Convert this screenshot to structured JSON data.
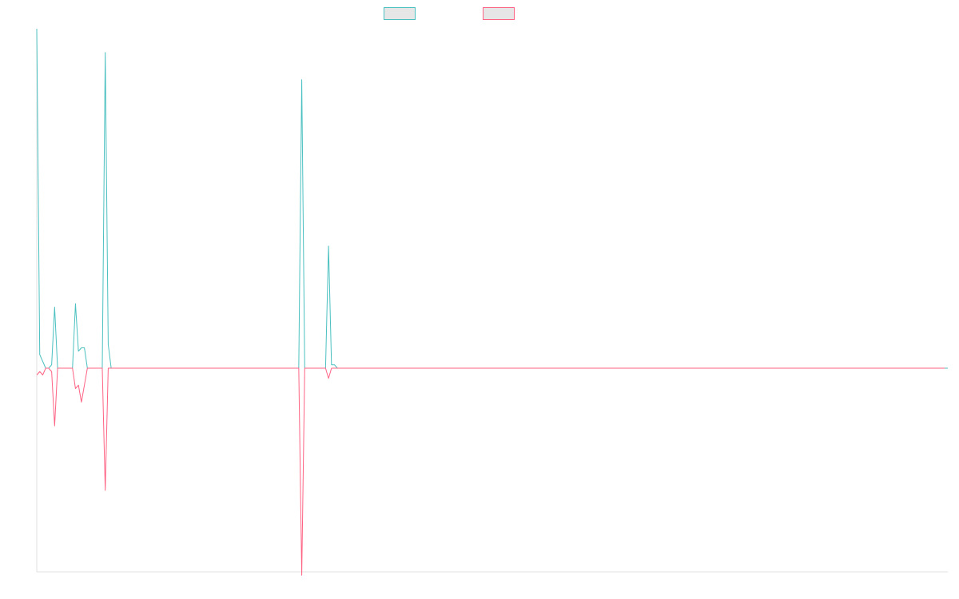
{
  "chart_data": {
    "type": "line",
    "title": "",
    "xlabel": "",
    "ylabel": "",
    "ylim": [
      -0.6,
      1.0
    ],
    "grid": false,
    "legend": "top",
    "series": [
      {
        "name": "",
        "color": "#4bc0c0",
        "values": [
          1.0,
          0.04,
          0.02,
          0,
          0,
          0.01,
          0.18,
          0,
          0,
          0,
          0,
          0,
          0,
          0.19,
          0.05,
          0.06,
          0.06,
          0,
          0,
          0,
          0,
          0,
          0,
          0.93,
          0.07,
          0,
          0,
          0,
          0,
          0,
          0,
          0,
          0,
          0,
          0,
          0,
          0,
          0,
          0,
          0,
          0,
          0,
          0,
          0,
          0,
          0,
          0,
          0,
          0,
          0,
          0,
          0,
          0,
          0,
          0,
          0,
          0,
          0,
          0,
          0,
          0,
          0,
          0,
          0,
          0,
          0,
          0,
          0,
          0,
          0,
          0,
          0,
          0,
          0,
          0,
          0,
          0,
          0,
          0,
          0,
          0,
          0,
          0,
          0,
          0,
          0,
          0,
          0,
          0,
          0.85,
          0.0,
          0,
          0,
          0,
          0,
          0,
          0,
          0,
          0.36,
          0.01,
          0.01,
          0,
          0,
          0,
          0,
          0,
          0,
          0,
          0,
          0,
          0,
          0,
          0,
          0,
          0,
          0,
          0,
          0,
          0,
          0,
          0,
          0,
          0,
          0,
          0,
          0,
          0,
          0,
          0,
          0,
          0,
          0,
          0,
          0,
          0,
          0,
          0,
          0,
          0,
          0,
          0,
          0,
          0,
          0,
          0,
          0,
          0,
          0,
          0,
          0,
          0,
          0,
          0,
          0,
          0,
          0,
          0,
          0,
          0,
          0,
          0,
          0,
          0,
          0,
          0,
          0,
          0,
          0,
          0,
          0,
          0,
          0,
          0,
          0,
          0,
          0,
          0,
          0,
          0,
          0,
          0,
          0,
          0,
          0,
          0,
          0,
          0,
          0,
          0,
          0,
          0,
          0,
          0,
          0,
          0,
          0,
          0,
          0,
          0,
          0,
          0,
          0,
          0,
          0,
          0,
          0,
          0,
          0,
          0,
          0,
          0,
          0,
          0,
          0,
          0,
          0,
          0,
          0,
          0,
          0,
          0,
          0,
          0,
          0,
          0,
          0,
          0,
          0,
          0,
          0,
          0,
          0,
          0,
          0,
          0,
          0,
          0,
          0,
          0,
          0,
          0,
          0,
          0,
          0,
          0,
          0,
          0,
          0,
          0,
          0,
          0,
          0,
          0,
          0,
          0,
          0,
          0,
          0,
          0,
          0,
          0,
          0,
          0,
          0,
          0,
          0,
          0,
          0,
          0,
          0,
          0,
          0,
          0,
          0,
          0,
          0,
          0,
          0,
          0,
          0,
          0,
          0,
          0,
          0,
          0,
          0,
          0,
          0,
          0,
          0,
          0,
          0,
          0,
          0,
          0,
          0,
          0,
          0,
          0,
          0,
          0,
          0,
          0,
          0,
          0,
          0,
          0
        ]
      },
      {
        "name": "",
        "color": "#ff6384",
        "values": [
          -0.02,
          -0.01,
          -0.02,
          0,
          0,
          -0.01,
          -0.17,
          0,
          0,
          0,
          0,
          0,
          0,
          -0.06,
          -0.05,
          -0.1,
          -0.05,
          0,
          0,
          0,
          0,
          0,
          0,
          -0.36,
          -0.0,
          0,
          0,
          0,
          0,
          0,
          0,
          0,
          0,
          0,
          0,
          0,
          0,
          0,
          0,
          0,
          0,
          0,
          0,
          0,
          0,
          0,
          0,
          0,
          0,
          0,
          0,
          0,
          0,
          0,
          0,
          0,
          0,
          0,
          0,
          0,
          0,
          0,
          0,
          0,
          0,
          0,
          0,
          0,
          0,
          0,
          0,
          0,
          0,
          0,
          0,
          0,
          0,
          0,
          0,
          0,
          0,
          0,
          0,
          0,
          0,
          0,
          0,
          0,
          0,
          -0.61,
          0.0,
          0,
          0,
          0,
          0,
          0,
          0,
          0,
          -0.03,
          -0.0,
          -0.0,
          0,
          0,
          0,
          0,
          0,
          0,
          0,
          0,
          0,
          0,
          0,
          0,
          0,
          0,
          0,
          0,
          0,
          0,
          0,
          0,
          0,
          0,
          0,
          0,
          0,
          0,
          0,
          0,
          0,
          0,
          0,
          0,
          0,
          0,
          0,
          0,
          0,
          0,
          0,
          0,
          0,
          0,
          0,
          0,
          0,
          0,
          0,
          0,
          0,
          0,
          0,
          0,
          0,
          0,
          0,
          0,
          0,
          0,
          0,
          0,
          0,
          0,
          0,
          0,
          0,
          0,
          0,
          0,
          0,
          0,
          0,
          0,
          0,
          0,
          0,
          0,
          0,
          0,
          0,
          0,
          0,
          0,
          0,
          0,
          0,
          0,
          0,
          0,
          0,
          0,
          0,
          0,
          0,
          0,
          0,
          0,
          0,
          0,
          0,
          0,
          0,
          0,
          0,
          0,
          0,
          0,
          0,
          0,
          0,
          0,
          0,
          0,
          0,
          0,
          0,
          0,
          0,
          0,
          0,
          0,
          0,
          0,
          0,
          0,
          0,
          0,
          0,
          0,
          0,
          0,
          0,
          0,
          0,
          0,
          0,
          0,
          0,
          0,
          0,
          0,
          0,
          0,
          0,
          0,
          0,
          0,
          0,
          0,
          0,
          0,
          0,
          0,
          0,
          0,
          0,
          0,
          0,
          0,
          0,
          0,
          0,
          0,
          0,
          0,
          0,
          0,
          0,
          0,
          0,
          0,
          0,
          0,
          0,
          0,
          0,
          0,
          0,
          0,
          0,
          0,
          0,
          0,
          0,
          0,
          0,
          0,
          0,
          0,
          0,
          0,
          0,
          0,
          0,
          0,
          0,
          0,
          0,
          0,
          0,
          0,
          0,
          0,
          0,
          0,
          0
        ]
      }
    ]
  }
}
